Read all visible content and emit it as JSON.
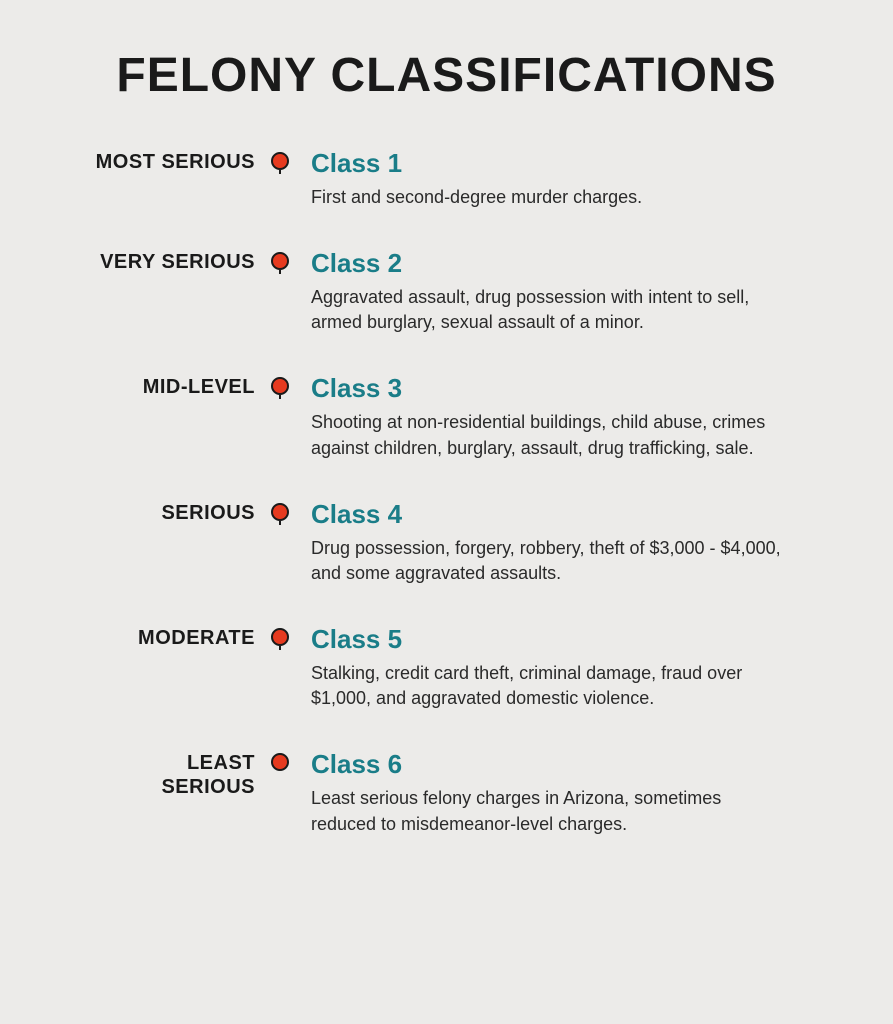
{
  "title": "FELONY CLASSIFICATIONS",
  "colors": {
    "background": "#ecebe9",
    "title_text": "#1a1a1a",
    "severity_text": "#1a1a1a",
    "class_text": "#1a7d88",
    "desc_text": "#2a2a2a",
    "dot_fill": "#e63a1f",
    "dot_border": "#1a1a1a",
    "line": "#1a1a1a"
  },
  "typography": {
    "title_fontsize": 48,
    "title_weight": 900,
    "severity_fontsize": 20,
    "severity_weight": 800,
    "class_fontsize": 26,
    "class_weight": 700,
    "desc_fontsize": 18
  },
  "layout": {
    "row_gap": 38,
    "dot_diameter": 18,
    "dot_border_width": 2.5,
    "line_style": "dashed",
    "severity_col_width": 165,
    "marker_col_width": 50
  },
  "items": [
    {
      "severity": "MOST SERIOUS",
      "class": "Class 1",
      "desc": "First and second-degree murder charges."
    },
    {
      "severity": "VERY SERIOUS",
      "class": "Class 2",
      "desc": "Aggravated assault, drug possession with intent to sell, armed burglary, sexual assault of a minor."
    },
    {
      "severity": "MID-LEVEL",
      "class": "Class 3",
      "desc": "Shooting at non-residential buildings, child abuse, crimes against children, burglary, assault, drug trafficking, sale."
    },
    {
      "severity": "SERIOUS",
      "class": "Class 4",
      "desc": "Drug possession, forgery, robbery, theft of $3,000 - $4,000, and some aggravated assaults."
    },
    {
      "severity": "MODERATE",
      "class": "Class 5",
      "desc": "Stalking, credit card theft, criminal damage, fraud over $1,000, and aggravated domestic violence."
    },
    {
      "severity": "LEAST SERIOUS",
      "class": "Class 6",
      "desc": "Least serious felony charges in Arizona, sometimes reduced to misdemeanor-level charges."
    }
  ]
}
